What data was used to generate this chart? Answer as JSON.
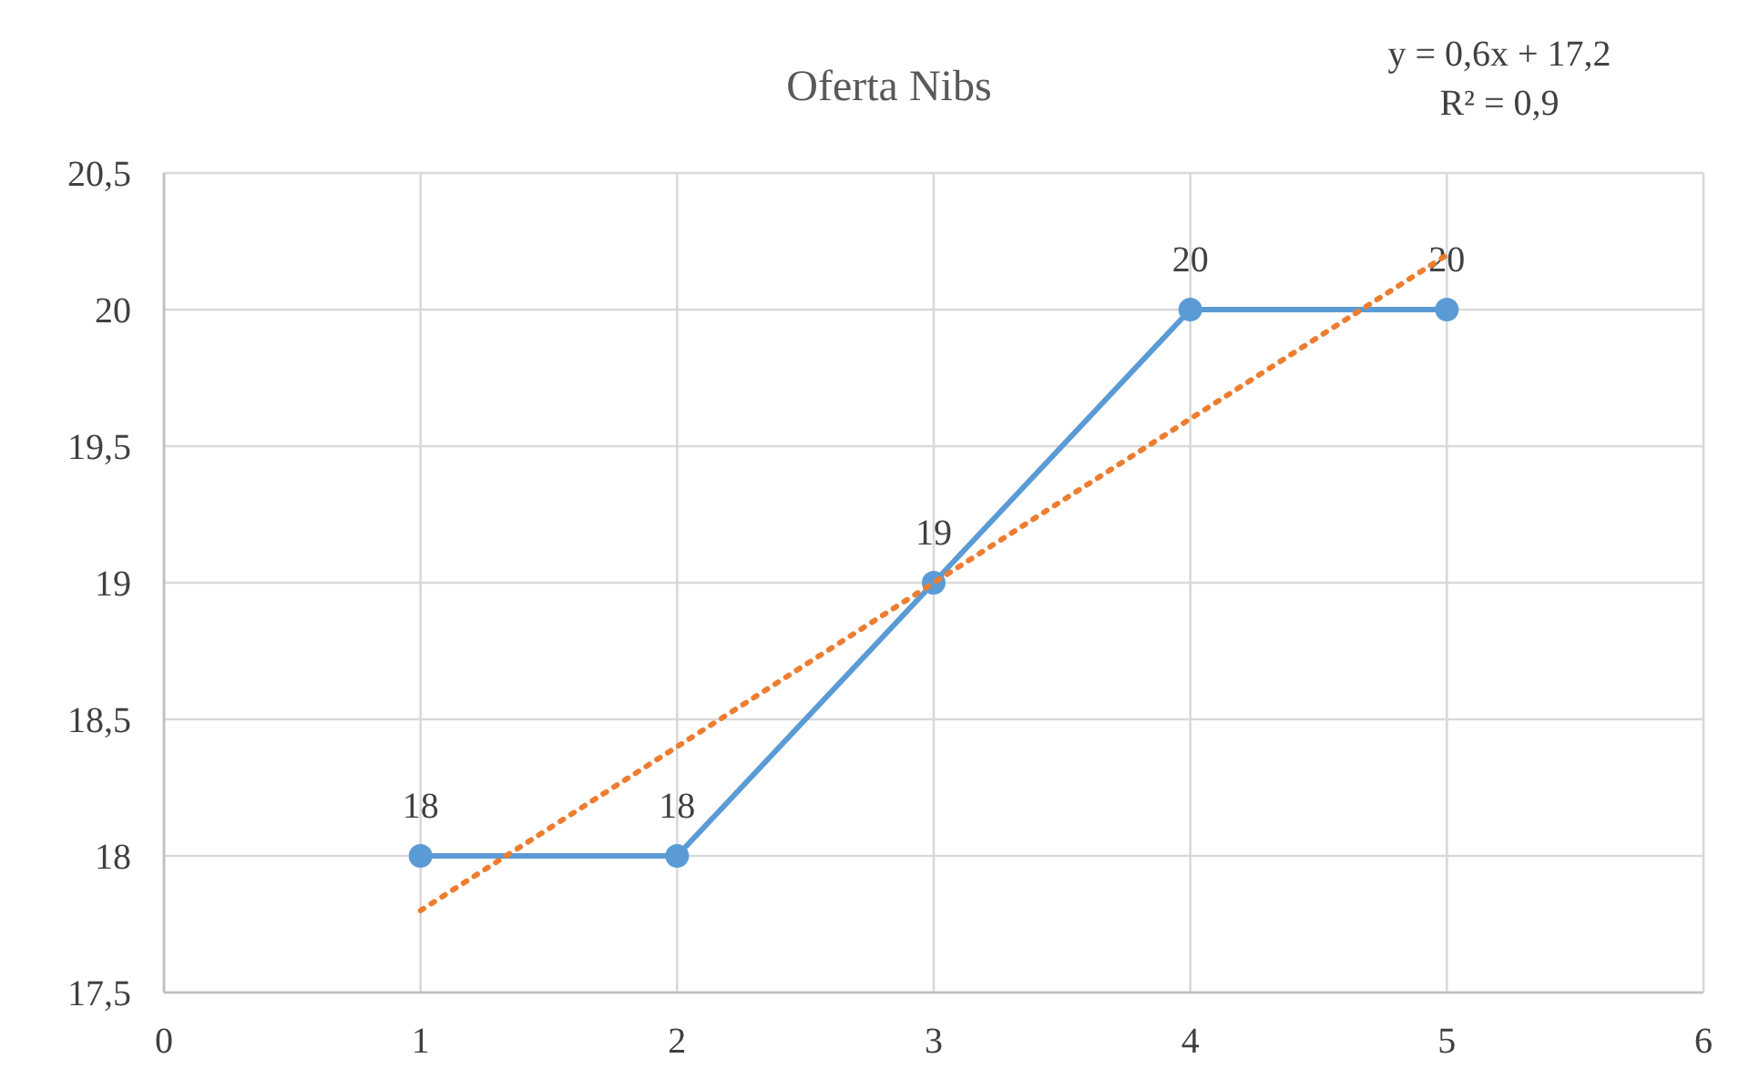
{
  "chart_data": {
    "type": "line",
    "title": "Oferta Nibs",
    "x": [
      1,
      2,
      3,
      4,
      5
    ],
    "series": [
      {
        "color": "#5b9bd5",
        "values": [
          18,
          18,
          19,
          20,
          20
        ],
        "marker": "circle",
        "line_style": "solid",
        "data_labels": true
      },
      {
        "type": "line",
        "color": "#ed7d31",
        "x": [
          1,
          5
        ],
        "values": [
          17.8,
          20.2
        ],
        "marker": "none",
        "line_style": "dotted"
      }
    ],
    "annotations": [
      "y = 0,6x + 17,2",
      "R² = 0,9"
    ],
    "xlim": [
      0,
      6
    ],
    "xticks": [
      0,
      1,
      2,
      3,
      4,
      5,
      6
    ],
    "ylim": [
      17.5,
      20.5
    ],
    "yticks": [
      {
        "value": 17.5,
        "label": "17,5"
      },
      18,
      {
        "value": 18.5,
        "label": "18,5"
      },
      19,
      {
        "value": 19.5,
        "label": "19,5"
      },
      20,
      {
        "value": 20.5,
        "label": "20,5"
      }
    ],
    "grid": true
  }
}
